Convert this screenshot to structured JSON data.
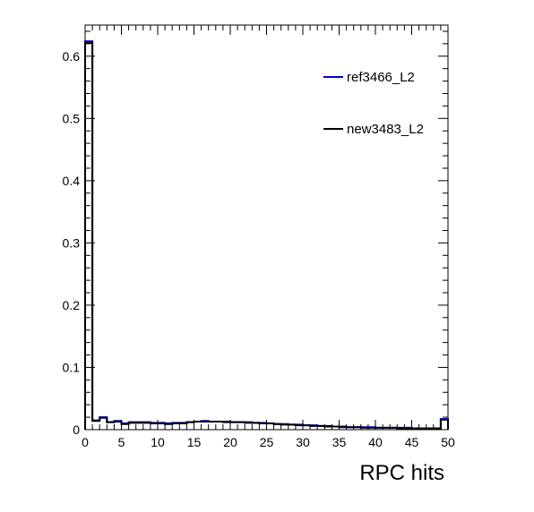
{
  "chart_data": {
    "type": "line",
    "title": "",
    "xlabel": "RPC hits",
    "ylabel": "",
    "xlim": [
      0,
      50
    ],
    "ylim": [
      0,
      0.65
    ],
    "grid": false,
    "legend_position": "top-right",
    "x_ticks": [
      "0",
      "5",
      "10",
      "15",
      "20",
      "25",
      "30",
      "35",
      "40",
      "45",
      "50"
    ],
    "y_ticks": [
      "0",
      "0.1",
      "0.2",
      "0.3",
      "0.4",
      "0.5",
      "0.6"
    ],
    "bin_edges": [
      0,
      1,
      2,
      3,
      4,
      5,
      6,
      7,
      8,
      9,
      10,
      11,
      12,
      13,
      14,
      15,
      16,
      17,
      18,
      19,
      20,
      21,
      22,
      23,
      24,
      25,
      26,
      27,
      28,
      29,
      30,
      31,
      32,
      33,
      34,
      35,
      36,
      37,
      38,
      39,
      40,
      41,
      42,
      43,
      44,
      45,
      46,
      47,
      48,
      49,
      50
    ],
    "series": [
      {
        "name": "ref3466_L2",
        "color": "#0000cc",
        "values": [
          0.624,
          0.015,
          0.02,
          0.012,
          0.014,
          0.01,
          0.012,
          0.012,
          0.012,
          0.011,
          0.011,
          0.01,
          0.011,
          0.011,
          0.012,
          0.013,
          0.014,
          0.013,
          0.013,
          0.013,
          0.012,
          0.012,
          0.012,
          0.011,
          0.011,
          0.01,
          0.009,
          0.009,
          0.008,
          0.008,
          0.007,
          0.007,
          0.006,
          0.006,
          0.005,
          0.005,
          0.004,
          0.004,
          0.004,
          0.004,
          0.003,
          0.003,
          0.003,
          0.003,
          0.003,
          0.002,
          0.002,
          0.002,
          0.002,
          0.017
        ]
      },
      {
        "name": "new3483_L2",
        "color": "#000000",
        "values": [
          0.621,
          0.014,
          0.019,
          0.012,
          0.013,
          0.009,
          0.011,
          0.011,
          0.011,
          0.01,
          0.01,
          0.009,
          0.01,
          0.01,
          0.012,
          0.013,
          0.013,
          0.013,
          0.013,
          0.012,
          0.012,
          0.012,
          0.011,
          0.011,
          0.01,
          0.01,
          0.009,
          0.008,
          0.008,
          0.007,
          0.007,
          0.006,
          0.006,
          0.005,
          0.005,
          0.004,
          0.004,
          0.004,
          0.003,
          0.003,
          0.003,
          0.003,
          0.003,
          0.002,
          0.002,
          0.002,
          0.002,
          0.002,
          0.002,
          0.016
        ]
      }
    ]
  }
}
